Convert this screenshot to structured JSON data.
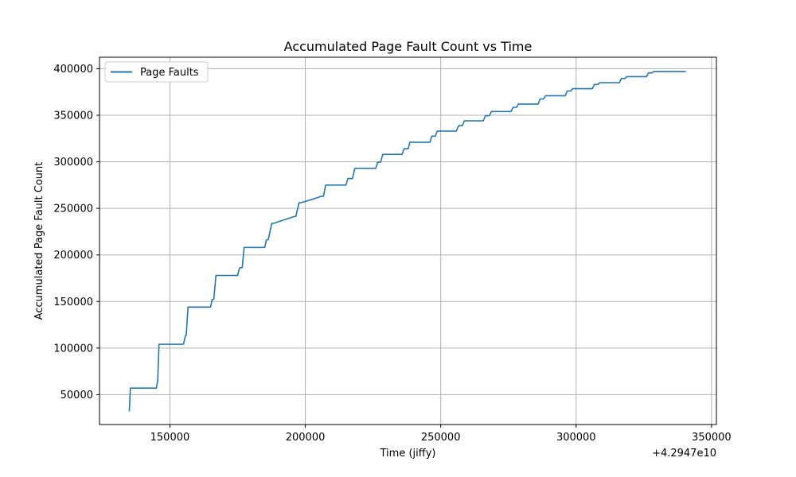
{
  "chart_data": {
    "type": "line",
    "title": "Accumulated Page Fault Count vs Time",
    "xlabel": "Time (jiffy)",
    "ylabel": "Accumulated Page Fault Count",
    "x_offset_label": "+4.2947e10",
    "xlim": [
      124000,
      351800
    ],
    "ylim": [
      17900,
      412300
    ],
    "x_ticks": [
      150000,
      200000,
      250000,
      300000,
      350000
    ],
    "x_tick_labels": [
      "150000",
      "200000",
      "250000",
      "300000",
      "350000"
    ],
    "y_ticks": [
      50000,
      100000,
      150000,
      200000,
      250000,
      300000,
      350000,
      400000
    ],
    "y_tick_labels": [
      "50000",
      "100000",
      "150000",
      "200000",
      "250000",
      "300000",
      "350000",
      "400000"
    ],
    "grid": true,
    "legend_position": "top-left",
    "series": [
      {
        "name": "Page Faults",
        "color": "#1f77b4",
        "x": [
          135000,
          135400,
          145000,
          145500,
          146000,
          155000,
          155700,
          156000,
          156700,
          165000,
          165600,
          166200,
          167000,
          175000,
          175700,
          176700,
          177400,
          185000,
          185600,
          186300,
          187600,
          188300,
          195500,
          196500,
          197700,
          198300,
          205000,
          205600,
          206700,
          207500,
          208100,
          215000,
          215700,
          217400,
          218300,
          226000,
          226700,
          227800,
          228600,
          235700,
          236500,
          238000,
          238600,
          246000,
          246700,
          248000,
          248700,
          255700,
          256700,
          258000,
          258700,
          265700,
          266500,
          268000,
          268700,
          276000,
          276700,
          278000,
          278700,
          286000,
          286700,
          288000,
          288700,
          296000,
          296700,
          298000,
          298700,
          306000,
          306700,
          308000,
          308700,
          316000,
          316700,
          318000,
          318700,
          326000,
          326700,
          328000,
          328700,
          340500
        ],
        "y": [
          32000,
          57000,
          57000,
          65000,
          104000,
          104000,
          113000,
          113500,
          144000,
          144000,
          152000,
          152500,
          178000,
          178000,
          186000,
          186500,
          208000,
          208000,
          216000,
          216500,
          234000,
          234000,
          241000,
          241500,
          256000,
          256000,
          262000,
          263000,
          263000,
          275000,
          275000,
          275000,
          282000,
          282000,
          293000,
          293000,
          299500,
          299500,
          308000,
          308000,
          314000,
          314000,
          321000,
          321000,
          327500,
          327500,
          333000,
          333000,
          339000,
          339000,
          344000,
          344000,
          349500,
          349500,
          354000,
          354000,
          358500,
          358500,
          362000,
          362000,
          367500,
          367500,
          371000,
          371000,
          376000,
          376000,
          378500,
          378500,
          383000,
          383000,
          385000,
          385000,
          389500,
          389500,
          391500,
          391500,
          395500,
          395500,
          397000,
          397000
        ]
      }
    ]
  }
}
